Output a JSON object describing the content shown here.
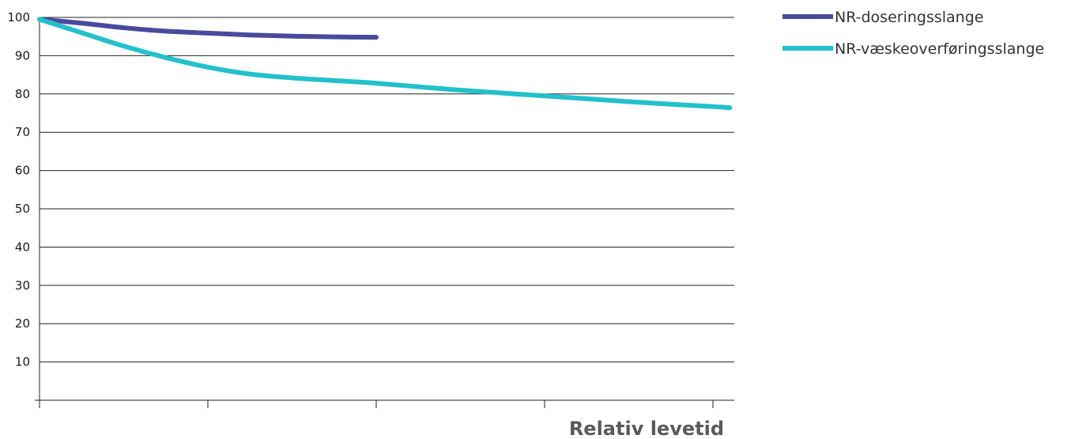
{
  "chart_data": {
    "type": "line",
    "title": "",
    "xlabel": "Relativ levetid",
    "ylabel": "",
    "xlim": [
      0,
      4.1
    ],
    "ylim": [
      0,
      100
    ],
    "x_ticks": [
      0,
      1,
      2,
      3,
      4
    ],
    "y_ticks": [
      10,
      20,
      30,
      40,
      50,
      60,
      70,
      80,
      90,
      100
    ],
    "grid": "horizontal",
    "legend_position": "top-right",
    "series": [
      {
        "name": "NR-doseringsslange",
        "color": "#4a4a9c",
        "x": [
          0,
          0.25,
          0.5,
          0.75,
          1.0,
          1.25,
          1.5,
          1.75,
          2.0
        ],
        "y": [
          99.5,
          98.5,
          97.3,
          96.4,
          95.9,
          95.4,
          95.1,
          94.9,
          94.8
        ]
      },
      {
        "name": "NR-væskeoverføringsslange",
        "color": "#22c1cc",
        "x": [
          0,
          0.25,
          0.5,
          0.75,
          1.0,
          1.25,
          1.5,
          1.75,
          2.0,
          2.5,
          3.0,
          3.5,
          4.0,
          4.1
        ],
        "y": [
          99.5,
          96.0,
          92.5,
          89.5,
          87.0,
          85.2,
          84.2,
          83.5,
          82.8,
          81.0,
          79.5,
          78.0,
          76.7,
          76.4
        ]
      }
    ]
  }
}
